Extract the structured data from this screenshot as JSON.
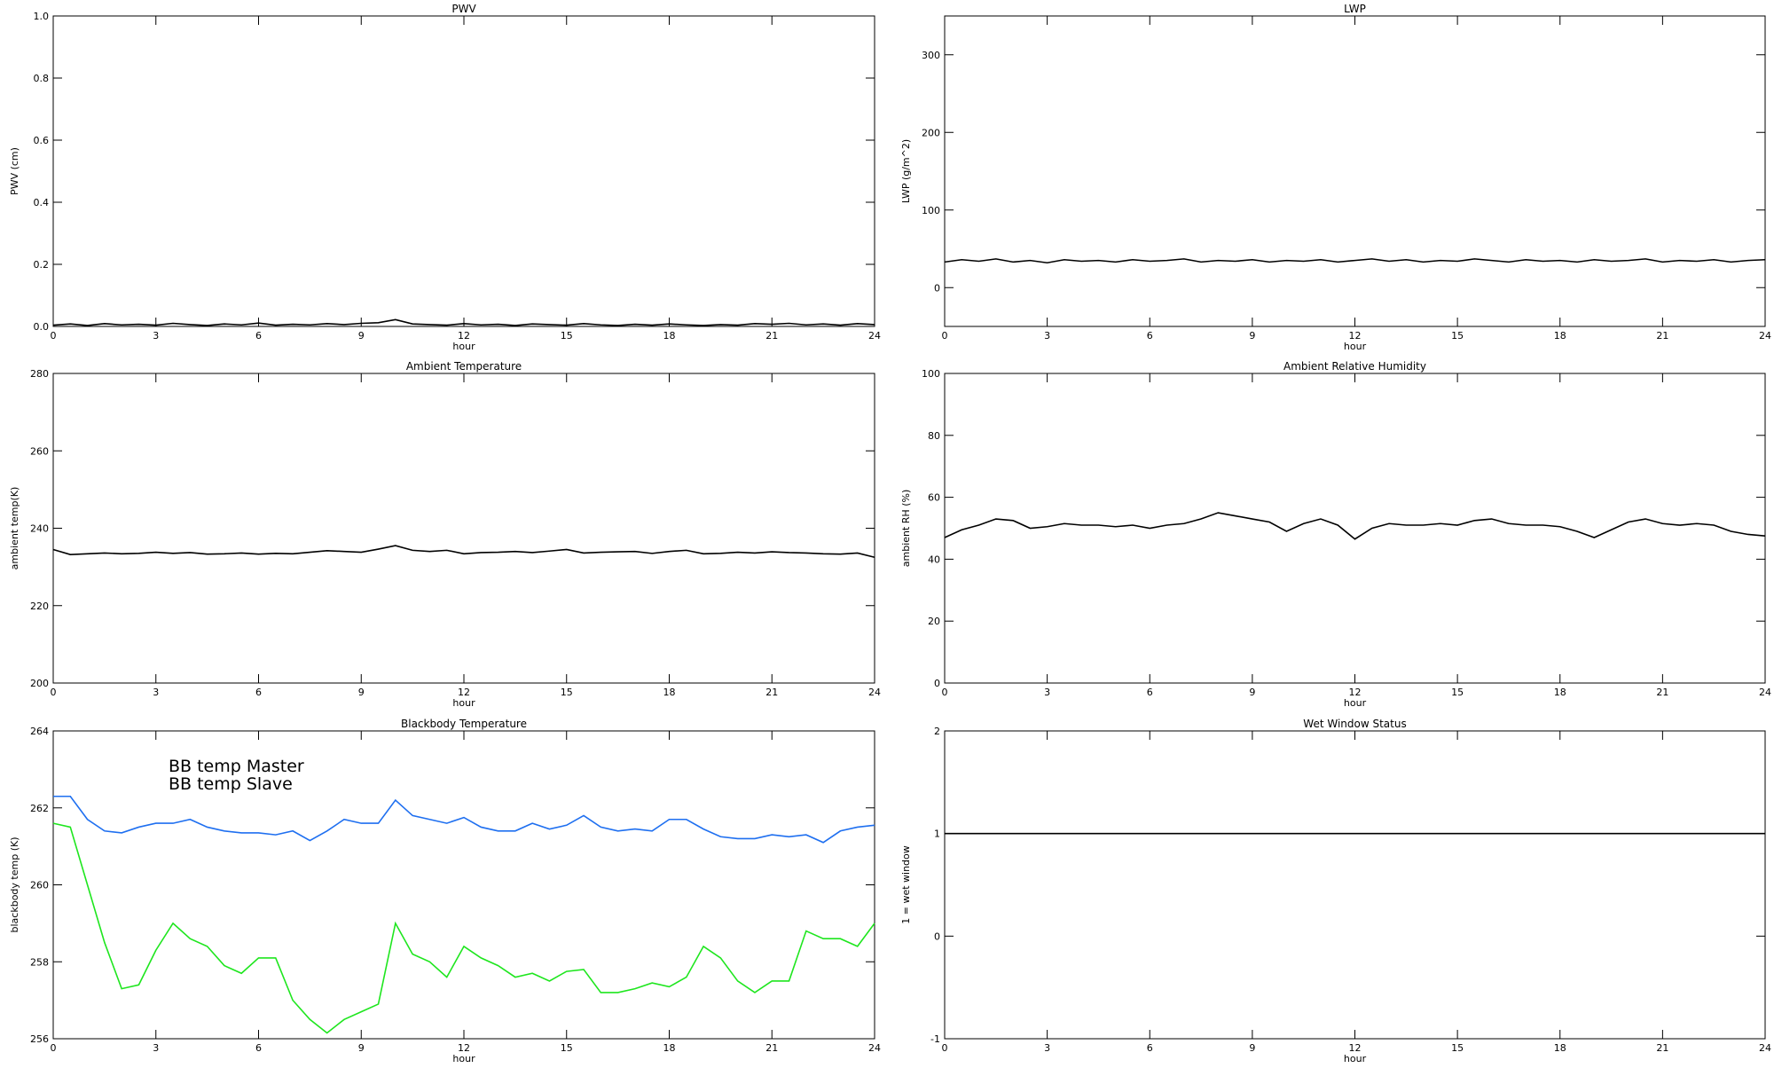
{
  "chart_data": [
    {
      "type": "line",
      "title": "PWV",
      "xlabel": "hour",
      "ylabel": "PWV (cm)",
      "xlim": [
        0,
        24
      ],
      "xticks": [
        0,
        3,
        6,
        9,
        12,
        15,
        18,
        21,
        24
      ],
      "ylim": [
        0,
        1
      ],
      "yticks": [
        {
          "value": 0,
          "label": "0.0"
        },
        0.2,
        0.4,
        0.6,
        0.8,
        {
          "value": 1,
          "label": "1.0"
        }
      ],
      "x": [
        0,
        0.5,
        1,
        1.5,
        2,
        2.5,
        3,
        3.5,
        4,
        4.5,
        5,
        5.5,
        6,
        6.5,
        7,
        7.5,
        8,
        8.5,
        9,
        9.5,
        10,
        10.5,
        11,
        11.5,
        12,
        12.5,
        13,
        13.5,
        14,
        14.5,
        15,
        15.5,
        16,
        16.5,
        17,
        17.5,
        18,
        18.5,
        19,
        19.5,
        20,
        20.5,
        21,
        21.5,
        22,
        22.5,
        23,
        23.5,
        24
      ],
      "series": [
        {
          "color": "#000000",
          "values": [
            0.004,
            0.008,
            0.003,
            0.009,
            0.005,
            0.007,
            0.004,
            0.01,
            0.006,
            0.003,
            0.008,
            0.005,
            0.011,
            0.004,
            0.007,
            0.005,
            0.009,
            0.006,
            0.01,
            0.012,
            0.022,
            0.008,
            0.006,
            0.004,
            0.009,
            0.005,
            0.007,
            0.003,
            0.008,
            0.006,
            0.004,
            0.009,
            0.005,
            0.003,
            0.007,
            0.004,
            0.008,
            0.005,
            0.003,
            0.006,
            0.004,
            0.009,
            0.007,
            0.01,
            0.005,
            0.008,
            0.004,
            0.009,
            0.006
          ]
        }
      ]
    },
    {
      "type": "line",
      "title": "LWP",
      "xlabel": "hour",
      "ylabel": "LWP (g/m^2)",
      "xlim": [
        0,
        24
      ],
      "xticks": [
        0,
        3,
        6,
        9,
        12,
        15,
        18,
        21,
        24
      ],
      "ylim": [
        -50,
        350
      ],
      "yticks": [
        0,
        100,
        200,
        300
      ],
      "x": [
        0,
        0.5,
        1,
        1.5,
        2,
        2.5,
        3,
        3.5,
        4,
        4.5,
        5,
        5.5,
        6,
        6.5,
        7,
        7.5,
        8,
        8.5,
        9,
        9.5,
        10,
        10.5,
        11,
        11.5,
        12,
        12.5,
        13,
        13.5,
        14,
        14.5,
        15,
        15.5,
        16,
        16.5,
        17,
        17.5,
        18,
        18.5,
        19,
        19.5,
        20,
        20.5,
        21,
        21.5,
        22,
        22.5,
        23,
        23.5,
        24
      ],
      "series": [
        {
          "color": "#000000",
          "values": [
            33,
            36,
            34,
            37,
            33,
            35,
            32,
            36,
            34,
            35,
            33,
            36,
            34,
            35,
            37,
            33,
            35,
            34,
            36,
            33,
            35,
            34,
            36,
            33,
            35,
            37,
            34,
            36,
            33,
            35,
            34,
            37,
            35,
            33,
            36,
            34,
            35,
            33,
            36,
            34,
            35,
            37,
            33,
            35,
            34,
            36,
            33,
            35,
            36
          ]
        }
      ]
    },
    {
      "type": "line",
      "title": "Ambient Temperature",
      "xlabel": "hour",
      "ylabel": "ambient temp(K)",
      "xlim": [
        0,
        24
      ],
      "xticks": [
        0,
        3,
        6,
        9,
        12,
        15,
        18,
        21,
        24
      ],
      "ylim": [
        200,
        280
      ],
      "yticks": [
        200,
        220,
        240,
        260,
        280
      ],
      "x": [
        0,
        0.5,
        1,
        1.5,
        2,
        2.5,
        3,
        3.5,
        4,
        4.5,
        5,
        5.5,
        6,
        6.5,
        7,
        7.5,
        8,
        8.5,
        9,
        9.5,
        10,
        10.5,
        11,
        11.5,
        12,
        12.5,
        13,
        13.5,
        14,
        14.5,
        15,
        15.5,
        16,
        16.5,
        17,
        17.5,
        18,
        18.5,
        19,
        19.5,
        20,
        20.5,
        21,
        21.5,
        22,
        22.5,
        23,
        23.5,
        24
      ],
      "series": [
        {
          "color": "#000000",
          "values": [
            234.5,
            233.2,
            233.4,
            233.6,
            233.4,
            233.5,
            233.8,
            233.5,
            233.7,
            233.3,
            233.4,
            233.6,
            233.3,
            233.5,
            233.4,
            233.8,
            234.2,
            234.0,
            233.8,
            234.6,
            235.5,
            234.3,
            234.0,
            234.3,
            233.4,
            233.7,
            233.8,
            234.0,
            233.7,
            234.1,
            234.5,
            233.6,
            233.8,
            233.9,
            234.0,
            233.5,
            234.0,
            234.3,
            233.4,
            233.5,
            233.8,
            233.6,
            233.9,
            233.7,
            233.6,
            233.4,
            233.3,
            233.6,
            232.5
          ]
        }
      ]
    },
    {
      "type": "line",
      "title": "Ambient Relative Humidity",
      "xlabel": "hour",
      "ylabel": "ambient RH (%)",
      "xlim": [
        0,
        24
      ],
      "xticks": [
        0,
        3,
        6,
        9,
        12,
        15,
        18,
        21,
        24
      ],
      "ylim": [
        0,
        100
      ],
      "yticks": [
        0,
        20,
        40,
        60,
        80,
        100
      ],
      "x": [
        0,
        0.5,
        1,
        1.5,
        2,
        2.5,
        3,
        3.5,
        4,
        4.5,
        5,
        5.5,
        6,
        6.5,
        7,
        7.5,
        8,
        8.5,
        9,
        9.5,
        10,
        10.5,
        11,
        11.5,
        12,
        12.5,
        13,
        13.5,
        14,
        14.5,
        15,
        15.5,
        16,
        16.5,
        17,
        17.5,
        18,
        18.5,
        19,
        19.5,
        20,
        20.5,
        21,
        21.5,
        22,
        22.5,
        23,
        23.5,
        24
      ],
      "series": [
        {
          "color": "#000000",
          "values": [
            47,
            49.5,
            51,
            53,
            52.5,
            50,
            50.5,
            51.5,
            51,
            51,
            50.5,
            51,
            50,
            51,
            51.5,
            53,
            55,
            54,
            53,
            52,
            49,
            51.5,
            53,
            51,
            46.5,
            50,
            51.5,
            51,
            51,
            51.5,
            51,
            52.5,
            53,
            51.5,
            51,
            51,
            50.5,
            49,
            47,
            49.5,
            52,
            53,
            51.5,
            51,
            51.5,
            51,
            49,
            48,
            47.5
          ]
        }
      ]
    },
    {
      "type": "line",
      "title": "Blackbody Temperature",
      "xlabel": "hour",
      "ylabel": "blackbody temp (K)",
      "xlim": [
        0,
        24
      ],
      "xticks": [
        0,
        3,
        6,
        9,
        12,
        15,
        18,
        21,
        24
      ],
      "ylim": [
        256,
        264
      ],
      "yticks": [
        256,
        258,
        260,
        262,
        264
      ],
      "legend": "upper left",
      "x": [
        0,
        0.5,
        1,
        1.5,
        2,
        2.5,
        3,
        3.5,
        4,
        4.5,
        5,
        5.5,
        6,
        6.5,
        7,
        7.5,
        8,
        8.5,
        9,
        9.5,
        10,
        10.5,
        11,
        11.5,
        12,
        12.5,
        13,
        13.5,
        14,
        14.5,
        15,
        15.5,
        16,
        16.5,
        17,
        17.5,
        18,
        18.5,
        19,
        19.5,
        20,
        20.5,
        21,
        21.5,
        22,
        22.5,
        23,
        23.5,
        24
      ],
      "series": [
        {
          "name": "BB temp Master",
          "color": "#1e6ff0",
          "values": [
            262.3,
            262.3,
            261.7,
            261.4,
            261.35,
            261.5,
            261.6,
            261.6,
            261.7,
            261.5,
            261.4,
            261.35,
            261.35,
            261.3,
            261.4,
            261.15,
            261.4,
            261.7,
            261.6,
            261.6,
            262.2,
            261.8,
            261.7,
            261.6,
            261.75,
            261.5,
            261.4,
            261.4,
            261.6,
            261.45,
            261.55,
            261.8,
            261.5,
            261.4,
            261.45,
            261.4,
            261.7,
            261.7,
            261.45,
            261.25,
            261.2,
            261.2,
            261.3,
            261.25,
            261.3,
            261.1,
            261.4,
            261.5,
            261.55
          ]
        },
        {
          "name": "BB temp Slave",
          "color": "#1ee61e",
          "values": [
            261.6,
            261.5,
            260,
            258.5,
            257.3,
            257.4,
            258.3,
            259,
            258.6,
            258.4,
            257.9,
            257.7,
            258.1,
            258.1,
            257,
            256.5,
            256.15,
            256.5,
            256.7,
            256.9,
            259,
            258.2,
            258,
            257.6,
            258.4,
            258.1,
            257.9,
            257.6,
            257.7,
            257.5,
            257.75,
            257.8,
            257.2,
            257.2,
            257.3,
            257.45,
            257.35,
            257.6,
            258.4,
            258.1,
            257.5,
            257.2,
            257.5,
            257.5,
            258.8,
            258.6,
            258.6,
            258.4,
            259
          ]
        }
      ]
    },
    {
      "type": "line",
      "title": "Wet Window Status",
      "xlabel": "hour",
      "ylabel": "1 = wet window",
      "xlim": [
        0,
        24
      ],
      "xticks": [
        0,
        3,
        6,
        9,
        12,
        15,
        18,
        21,
        24
      ],
      "ylim": [
        -1,
        2
      ],
      "yticks": [
        -1,
        0,
        1,
        2
      ],
      "x": [
        0,
        24
      ],
      "series": [
        {
          "color": "#000000",
          "values": [
            1,
            1
          ]
        }
      ]
    }
  ]
}
